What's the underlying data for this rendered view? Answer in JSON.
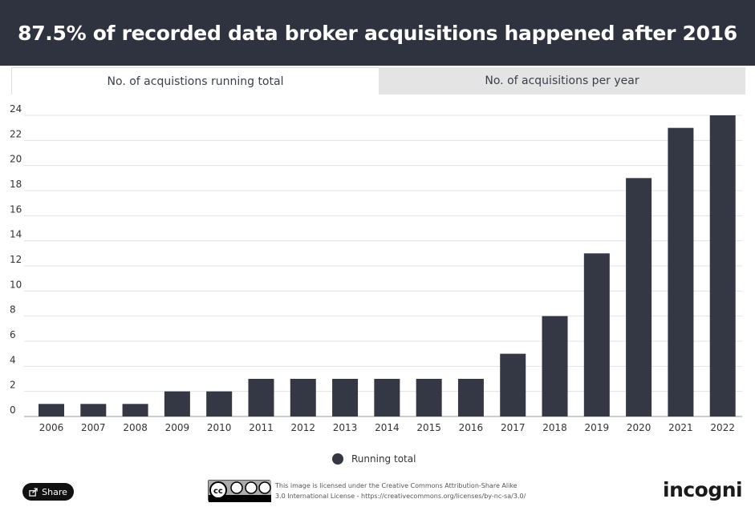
{
  "header": {
    "title": "87.5% of recorded data broker acquisitions happened after 2016"
  },
  "tabs": [
    {
      "label": "No. of acquistions running total",
      "active": true
    },
    {
      "label": "No. of acquisitions per year",
      "active": false
    }
  ],
  "chart_data": {
    "type": "bar",
    "categories": [
      "2006",
      "2007",
      "2008",
      "2009",
      "2010",
      "2011",
      "2012",
      "2013",
      "2014",
      "2015",
      "2016",
      "2017",
      "2018",
      "2019",
      "2020",
      "2021",
      "2022"
    ],
    "series": [
      {
        "name": "Running total",
        "values": [
          1,
          1,
          1,
          2,
          2,
          3,
          3,
          3,
          3,
          3,
          3,
          5,
          8,
          13,
          19,
          23,
          24
        ]
      }
    ],
    "ylim": [
      0,
      24
    ],
    "yticks": [
      0,
      2,
      4,
      6,
      8,
      10,
      12,
      14,
      16,
      18,
      20,
      22,
      24
    ],
    "grid": true,
    "legend_position": "bottom-center",
    "bar_color": "#343845"
  },
  "legend": {
    "label": "Running total"
  },
  "footer": {
    "share_label": "Share",
    "cc_badge": "CC BY NC SA",
    "license_line1": "This image is licensed under the Creative Commons Attribution-Share Alike",
    "license_line2": "3.0 International License - https://creativecommons.org/licenses/by-nc-sa/3.0/",
    "brand": "incogni"
  }
}
